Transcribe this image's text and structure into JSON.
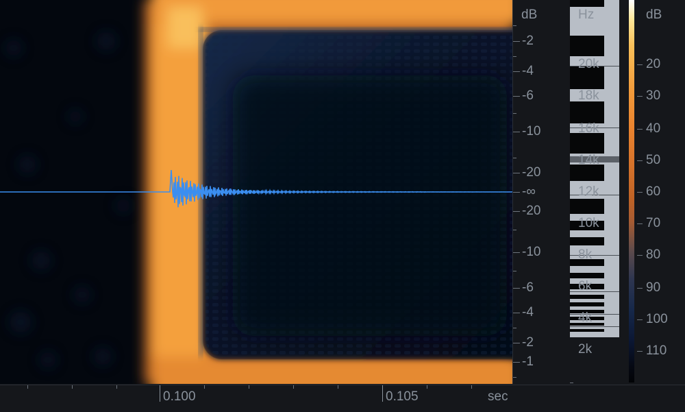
{
  "spectrogram": {
    "title": "",
    "waveform_color": "#3b8ef0",
    "energy_color": "#f39a36"
  },
  "amplitude_ruler": {
    "unit": "dB",
    "labels_top": [
      "-2",
      "-4",
      "-6",
      "-10",
      "-20"
    ],
    "center_label": "-∞",
    "labels_bottom": [
      "-20",
      "-10",
      "-6",
      "-4",
      "-2",
      "-1"
    ]
  },
  "frequency_ruler": {
    "unit": "Hz",
    "labels": [
      "20k",
      "18k",
      "16k",
      "14k",
      "12k",
      "10k",
      "8k",
      "6k",
      "4k",
      "2k"
    ]
  },
  "color_scale": {
    "unit": "dB",
    "labels": [
      "20",
      "30",
      "40",
      "50",
      "60",
      "70",
      "80",
      "90",
      "100",
      "110"
    ]
  },
  "time_ruler": {
    "unit": "sec",
    "labels": [
      "0.100",
      "0.105"
    ]
  }
}
